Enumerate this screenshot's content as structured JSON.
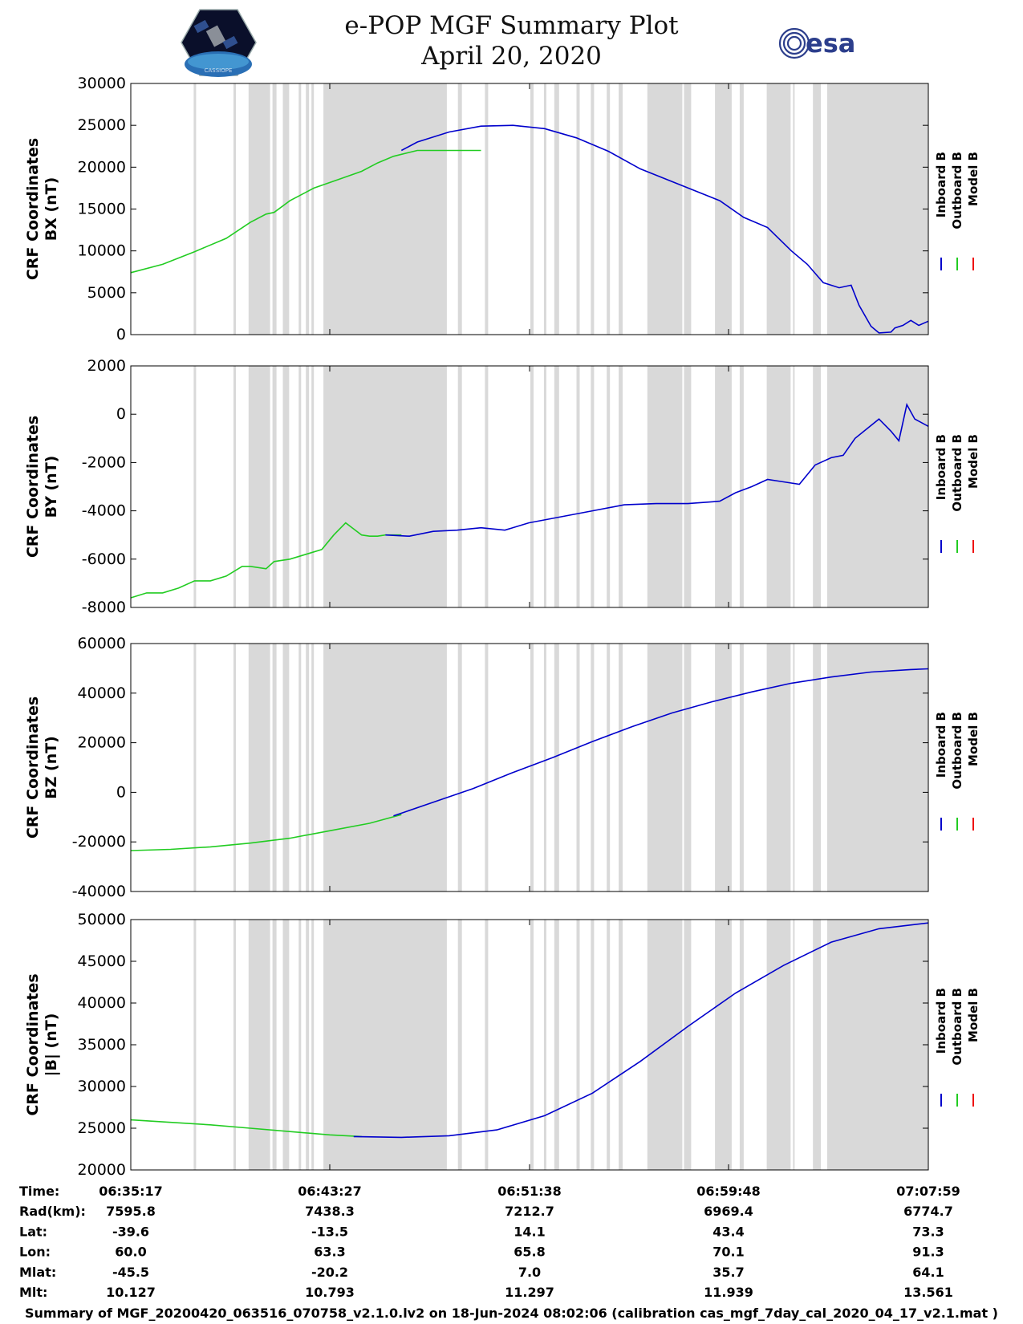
{
  "header": {
    "title": "e-POP MGF Summary Plot",
    "date": "April 20, 2020",
    "logo_left_text": "CASSIOPE",
    "logo_right_text": "esa"
  },
  "colors": {
    "inboard": "#0000cc",
    "outboard": "#22cc22",
    "model": "#ee1111",
    "shading": "#d9d9d9"
  },
  "legend": [
    "Inboard B",
    "Outboard B",
    "Model B"
  ],
  "chart_data": [
    {
      "type": "line",
      "id": "bx",
      "title": "",
      "xlabel": "",
      "ylabel": [
        "CRF Coordinates",
        "BX (nT)"
      ],
      "xlim": [
        0,
        1002
      ],
      "ylim": [
        0,
        30000
      ],
      "yticks": [
        0,
        5000,
        10000,
        15000,
        20000,
        25000,
        30000
      ],
      "ytick_labels": [
        "0",
        "5000",
        "10000",
        "15000",
        "20000",
        "25000",
        "30000"
      ],
      "series": [
        {
          "name": "Outboard B",
          "color": "#22cc22",
          "x": [
            0,
            40,
            80,
            120,
            150,
            170,
            180,
            200,
            230,
            260,
            290,
            310,
            330,
            360,
            380,
            400,
            420,
            440
          ],
          "y": [
            7400,
            8400,
            9900,
            11500,
            13400,
            14400,
            14600,
            16000,
            17500,
            18500,
            19500,
            20500,
            21300,
            22000,
            22000,
            22000,
            22000,
            22000
          ]
        },
        {
          "name": "Inboard B",
          "color": "#0000cc",
          "x": [
            340,
            360,
            400,
            440,
            480,
            520,
            560,
            600,
            640,
            690,
            740,
            770,
            800,
            830,
            850,
            870,
            890,
            905,
            915,
            930,
            940,
            955,
            960,
            970,
            980,
            990,
            1002
          ],
          "y": [
            22000,
            23000,
            24200,
            24900,
            25000,
            24600,
            23500,
            21900,
            19800,
            17900,
            16000,
            14000,
            12800,
            10000,
            8400,
            6200,
            5600,
            5900,
            3500,
            1000,
            200,
            300,
            800,
            1100,
            1700,
            1100,
            1600
          ]
        }
      ]
    },
    {
      "type": "line",
      "id": "by",
      "title": "",
      "xlabel": "",
      "ylabel": [
        "CRF Coordinates",
        "BY (nT)"
      ],
      "xlim": [
        0,
        1002
      ],
      "ylim": [
        -8000,
        2000
      ],
      "yticks": [
        -8000,
        -6000,
        -4000,
        -2000,
        0,
        2000
      ],
      "ytick_labels": [
        "-8000",
        "-6000",
        "-4000",
        "-2000",
        "0",
        "2000"
      ],
      "series": [
        {
          "name": "Outboard B",
          "color": "#22cc22",
          "x": [
            0,
            20,
            40,
            60,
            80,
            100,
            120,
            140,
            150,
            170,
            180,
            200,
            220,
            240,
            255,
            270,
            290,
            300,
            310,
            320,
            340
          ],
          "y": [
            -7600,
            -7400,
            -7400,
            -7200,
            -6900,
            -6900,
            -6700,
            -6300,
            -6300,
            -6400,
            -6100,
            -6000,
            -5800,
            -5600,
            -5000,
            -4500,
            -5000,
            -5050,
            -5050,
            -5000,
            -5000
          ]
        },
        {
          "name": "Inboard B",
          "color": "#0000cc",
          "x": [
            320,
            350,
            380,
            410,
            440,
            470,
            500,
            540,
            580,
            620,
            660,
            700,
            740,
            760,
            780,
            800,
            820,
            840,
            860,
            880,
            895,
            910,
            925,
            940,
            955,
            965,
            975,
            985,
            1002
          ],
          "y": [
            -5000,
            -5050,
            -4850,
            -4800,
            -4700,
            -4800,
            -4500,
            -4250,
            -4000,
            -3750,
            -3700,
            -3700,
            -3600,
            -3250,
            -3000,
            -2700,
            -2800,
            -2900,
            -2100,
            -1800,
            -1700,
            -1000,
            -600,
            -200,
            -700,
            -1100,
            400,
            -200,
            -500
          ]
        }
      ]
    },
    {
      "type": "line",
      "id": "bz",
      "title": "",
      "xlabel": "",
      "ylabel": [
        "CRF Coordinates",
        "BZ (nT)"
      ],
      "xlim": [
        0,
        1002
      ],
      "ylim": [
        -40000,
        60000
      ],
      "yticks": [
        -40000,
        -20000,
        0,
        20000,
        40000,
        60000
      ],
      "ytick_labels": [
        "-40000",
        "-20000",
        "0",
        "20000",
        "40000",
        "60000"
      ],
      "series": [
        {
          "name": "Outboard B",
          "color": "#22cc22",
          "x": [
            0,
            50,
            100,
            150,
            200,
            250,
            300,
            340
          ],
          "y": [
            -23500,
            -23000,
            -22000,
            -20500,
            -18500,
            -15500,
            -12500,
            -9000
          ]
        },
        {
          "name": "Inboard B",
          "color": "#0000cc",
          "x": [
            330,
            380,
            430,
            480,
            530,
            580,
            630,
            680,
            730,
            780,
            830,
            880,
            930,
            980,
            1002
          ],
          "y": [
            -9500,
            -4000,
            1500,
            8000,
            14000,
            20500,
            26500,
            32000,
            36500,
            40500,
            44000,
            46500,
            48500,
            49500,
            49800
          ]
        }
      ]
    },
    {
      "type": "line",
      "id": "bmag",
      "title": "",
      "xlabel": "",
      "ylabel": [
        "CRF Coordinates",
        "|B| (nT)"
      ],
      "xlim": [
        0,
        1002
      ],
      "ylim": [
        20000,
        50000
      ],
      "yticks": [
        20000,
        25000,
        30000,
        35000,
        40000,
        45000,
        50000
      ],
      "ytick_labels": [
        "20000",
        "25000",
        "30000",
        "35000",
        "40000",
        "45000",
        "50000"
      ],
      "series": [
        {
          "name": "Outboard B",
          "color": "#22cc22",
          "x": [
            0,
            50,
            100,
            150,
            200,
            250,
            290
          ],
          "y": [
            26000,
            25700,
            25400,
            25000,
            24600,
            24200,
            24000
          ]
        },
        {
          "name": "Inboard B",
          "color": "#0000cc",
          "x": [
            280,
            340,
            400,
            460,
            520,
            580,
            640,
            700,
            760,
            820,
            880,
            940,
            1002
          ],
          "y": [
            24000,
            23900,
            24100,
            24800,
            26500,
            29200,
            33000,
            37200,
            41200,
            44500,
            47300,
            48900,
            49600
          ]
        }
      ]
    }
  ],
  "shaded_intervals": [
    [
      79,
      82
    ],
    [
      129,
      132
    ],
    [
      148,
      175
    ],
    [
      178,
      183
    ],
    [
      191,
      199
    ],
    [
      211,
      214
    ],
    [
      220,
      224
    ],
    [
      227,
      230
    ],
    [
      242,
      397
    ],
    [
      411,
      416
    ],
    [
      445,
      449
    ],
    [
      502,
      506
    ],
    [
      519,
      522
    ],
    [
      532,
      538
    ],
    [
      560,
      564
    ],
    [
      578,
      582
    ],
    [
      598,
      602
    ],
    [
      613,
      618
    ],
    [
      649,
      693
    ],
    [
      695,
      704
    ],
    [
      734,
      755
    ],
    [
      765,
      770
    ],
    [
      799,
      829
    ],
    [
      832,
      834
    ],
    [
      857,
      867
    ],
    [
      875,
      1002
    ]
  ],
  "time_axis": {
    "ticks": [
      0,
      250,
      501,
      751,
      1002
    ],
    "labels": [
      "06:35:17",
      "06:43:27",
      "06:51:38",
      "06:59:48",
      "07:07:59"
    ]
  },
  "ephemeris": {
    "rows": [
      {
        "label": "Time:",
        "values": [
          "06:35:17",
          "06:43:27",
          "06:51:38",
          "06:59:48",
          "07:07:59"
        ]
      },
      {
        "label": "Rad(km):",
        "values": [
          "7595.8",
          "7438.3",
          "7212.7",
          "6969.4",
          "6774.7"
        ]
      },
      {
        "label": "Lat:",
        "values": [
          "-39.6",
          "-13.5",
          "14.1",
          "43.4",
          "73.3"
        ]
      },
      {
        "label": "Lon:",
        "values": [
          "60.0",
          "63.3",
          "65.8",
          "70.1",
          "91.3"
        ]
      },
      {
        "label": "Mlat:",
        "values": [
          "-45.5",
          "-20.2",
          "7.0",
          "35.7",
          "64.1"
        ]
      },
      {
        "label": "Mlt:",
        "values": [
          "10.127",
          "10.793",
          "11.297",
          "11.939",
          "13.561"
        ]
      }
    ]
  },
  "footer": "Summary of MGF_20200420_063516_070758_v2.1.0.lv2 on 18-Jun-2024 08:02:06 (calibration cas_mgf_7day_cal_2020_04_17_v2.1.mat )"
}
